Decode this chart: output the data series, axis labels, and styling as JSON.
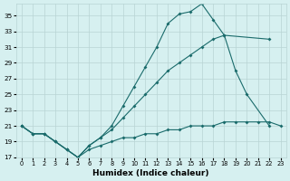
{
  "xlabel": "Humidex (Indice chaleur)",
  "bg_color": "#d6f0f0",
  "grid_color": "#b8d4d4",
  "line_color": "#1a6b6b",
  "xlim": [
    -0.5,
    23.5
  ],
  "ylim": [
    17,
    36.5
  ],
  "yticks": [
    17,
    19,
    21,
    23,
    25,
    27,
    29,
    31,
    33,
    35
  ],
  "xticks": [
    0,
    1,
    2,
    3,
    4,
    5,
    6,
    7,
    8,
    9,
    10,
    11,
    12,
    13,
    14,
    15,
    16,
    17,
    18,
    19,
    20,
    21,
    22,
    23
  ],
  "line_top_x": [
    0,
    1,
    2,
    3,
    4,
    5,
    6,
    7,
    8,
    9,
    10,
    11,
    12,
    13,
    14,
    15,
    16,
    17,
    18,
    22
  ],
  "line_top_y": [
    21,
    20,
    20,
    19,
    18,
    17,
    18.5,
    19.5,
    21,
    23.5,
    26,
    28.5,
    31,
    34,
    35.2,
    35.5,
    36.5,
    34.5,
    32.5,
    32
  ],
  "line_mid_x": [
    0,
    1,
    2,
    3,
    4,
    5,
    6,
    7,
    8,
    9,
    10,
    11,
    12,
    13,
    14,
    15,
    16,
    17,
    18,
    19,
    20,
    22
  ],
  "line_mid_y": [
    21,
    20,
    20,
    19,
    18,
    17,
    18.5,
    19.5,
    20.5,
    22,
    23.5,
    25,
    26.5,
    28,
    29,
    30,
    31,
    32,
    32.5,
    28,
    25,
    21
  ],
  "line_bot_x": [
    0,
    1,
    2,
    3,
    4,
    5,
    6,
    7,
    8,
    9,
    10,
    11,
    12,
    13,
    14,
    15,
    16,
    17,
    18,
    19,
    20,
    21,
    22,
    23
  ],
  "line_bot_y": [
    21,
    20,
    20,
    19,
    18,
    17,
    18,
    18.5,
    19,
    19.5,
    19.5,
    20,
    20,
    20.5,
    20.5,
    21,
    21,
    21,
    21.5,
    21.5,
    21.5,
    21.5,
    21.5,
    21
  ]
}
